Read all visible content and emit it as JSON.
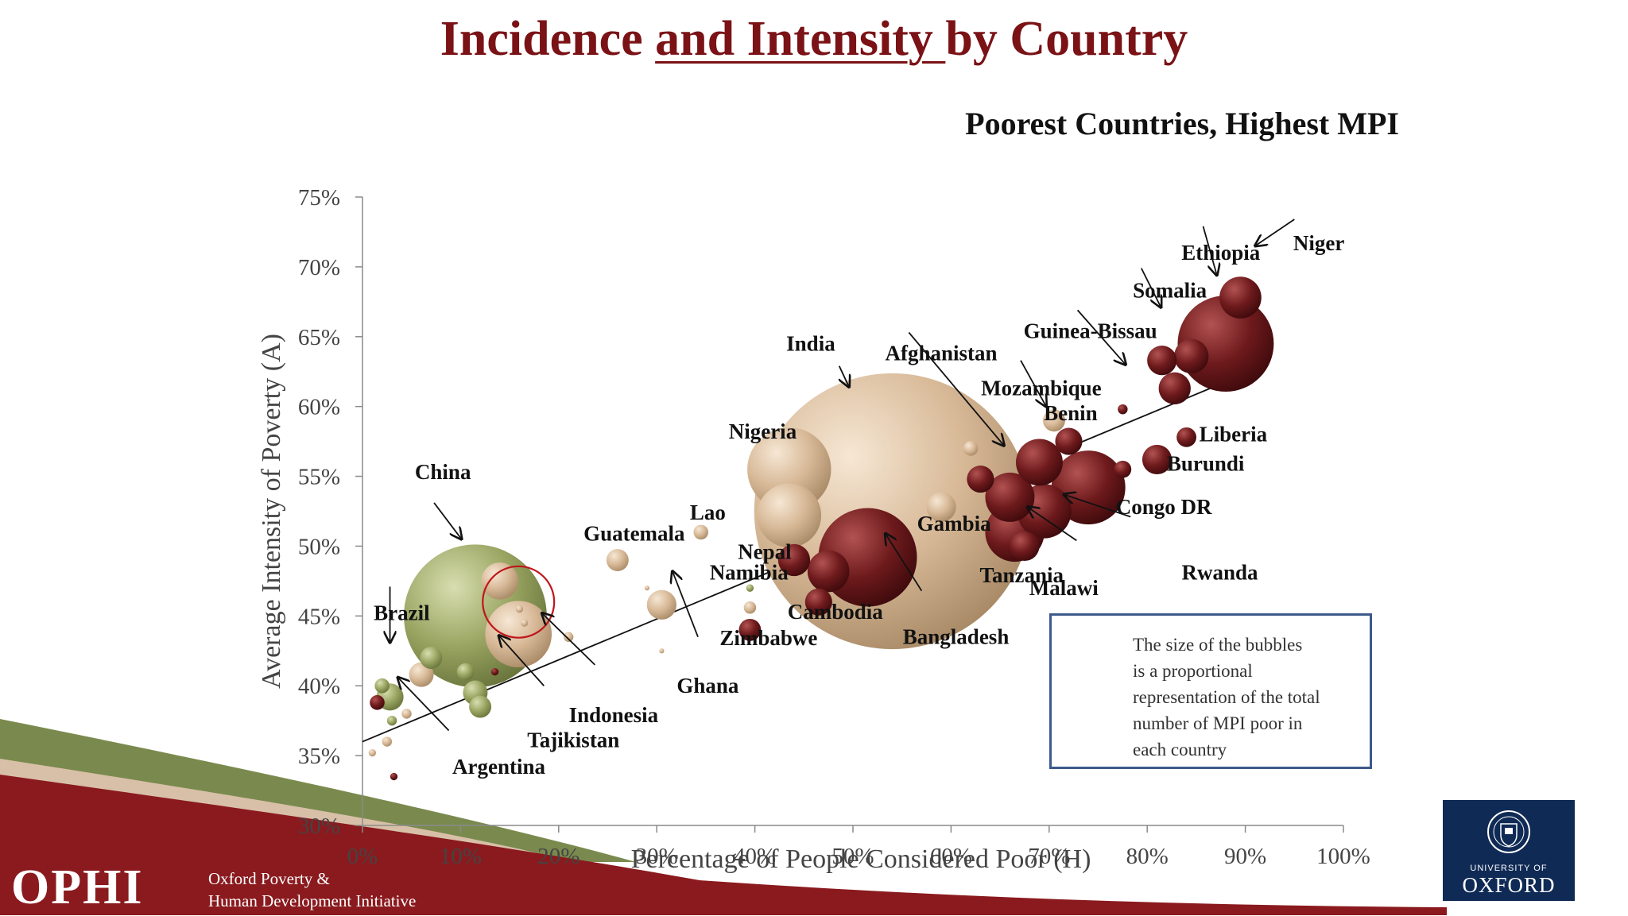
{
  "slide": {
    "title_part1": "Incidence ",
    "title_part2": "and Intensity ",
    "title_part3": "by Country"
  },
  "chart_data": {
    "type": "scatter",
    "subtitle": "Poorest Countries, Highest MPI",
    "xlabel": "Percentage of People Considered Poor (H)",
    "ylabel": "Average Intensity of Poverty (A)",
    "xlim": [
      0,
      100
    ],
    "ylim": [
      30,
      75
    ],
    "x_ticks": [
      {
        "value": 0,
        "label": "0%"
      },
      {
        "value": 10,
        "label": "10%"
      },
      {
        "value": 20,
        "label": "20%"
      },
      {
        "value": 30,
        "label": "30%"
      },
      {
        "value": 40,
        "label": "40%"
      },
      {
        "value": 50,
        "label": "50%"
      },
      {
        "value": 60,
        "label": "60%"
      },
      {
        "value": 70,
        "label": "70%"
      },
      {
        "value": 80,
        "label": "80%"
      },
      {
        "value": 90,
        "label": "90%"
      },
      {
        "value": 100,
        "label": "100%"
      }
    ],
    "y_ticks": [
      {
        "value": 30,
        "label": "30%"
      },
      {
        "value": 35,
        "label": "35%"
      },
      {
        "value": 40,
        "label": "40%"
      },
      {
        "value": 45,
        "label": "45%"
      },
      {
        "value": 50,
        "label": "50%"
      },
      {
        "value": 55,
        "label": "55%"
      },
      {
        "value": 60,
        "label": "60%"
      },
      {
        "value": 65,
        "label": "65%"
      },
      {
        "value": 70,
        "label": "70%"
      },
      {
        "value": 75,
        "label": "75%"
      }
    ],
    "grid": false,
    "trendline": {
      "x1": 0,
      "y1": 36,
      "x2": 89.5,
      "y2": 62.2
    },
    "colors": {
      "tan": "#d7b896",
      "maroon": "#6e1a1c",
      "olive": "#9aa562",
      "highlight": "#c0161c"
    },
    "points": [
      {
        "x": 54,
        "y": 52.5,
        "size": 112,
        "color": "tan"
      },
      {
        "x": 43.5,
        "y": 55.5,
        "size": 34,
        "color": "tan"
      },
      {
        "x": 43.5,
        "y": 52.2,
        "size": 26,
        "color": "tan"
      },
      {
        "x": 11.5,
        "y": 45,
        "size": 58,
        "color": "olive"
      },
      {
        "x": 15.9,
        "y": 43.7,
        "size": 27,
        "color": "tan"
      },
      {
        "x": 14,
        "y": 47.5,
        "size": 15,
        "color": "tan"
      },
      {
        "x": 51.5,
        "y": 49.2,
        "size": 40,
        "color": "maroon"
      },
      {
        "x": 74,
        "y": 54.2,
        "size": 30,
        "color": "maroon"
      },
      {
        "x": 69.5,
        "y": 52.5,
        "size": 22,
        "color": "maroon"
      },
      {
        "x": 66,
        "y": 53.5,
        "size": 20,
        "color": "maroon"
      },
      {
        "x": 66.5,
        "y": 51,
        "size": 24,
        "color": "maroon"
      },
      {
        "x": 67.5,
        "y": 50,
        "size": 12,
        "color": "maroon"
      },
      {
        "x": 69,
        "y": 56,
        "size": 19,
        "color": "maroon"
      },
      {
        "x": 88,
        "y": 64.5,
        "size": 39,
        "color": "maroon"
      },
      {
        "x": 89.5,
        "y": 67.8,
        "size": 17,
        "color": "maroon"
      },
      {
        "x": 82.8,
        "y": 61.3,
        "size": 13,
        "color": "maroon"
      },
      {
        "x": 81.5,
        "y": 63.3,
        "size": 12,
        "color": "maroon"
      },
      {
        "x": 84.5,
        "y": 63.6,
        "size": 14,
        "color": "maroon"
      },
      {
        "x": 81,
        "y": 56.2,
        "size": 12,
        "color": "maroon"
      },
      {
        "x": 84,
        "y": 57.8,
        "size": 8,
        "color": "maroon"
      },
      {
        "x": 77.5,
        "y": 55.5,
        "size": 7,
        "color": "maroon"
      },
      {
        "x": 72,
        "y": 57.5,
        "size": 11,
        "color": "maroon"
      },
      {
        "x": 63,
        "y": 54.8,
        "size": 11,
        "color": "maroon"
      },
      {
        "x": 47.5,
        "y": 48.2,
        "size": 17,
        "color": "maroon"
      },
      {
        "x": 44,
        "y": 49,
        "size": 13,
        "color": "maroon"
      },
      {
        "x": 46.5,
        "y": 46,
        "size": 11,
        "color": "maroon"
      },
      {
        "x": 39.5,
        "y": 44,
        "size": 9,
        "color": "maroon"
      },
      {
        "x": 70.5,
        "y": 59,
        "size": 9,
        "color": "tan"
      },
      {
        "x": 59,
        "y": 52.8,
        "size": 12,
        "color": "tan"
      },
      {
        "x": 62,
        "y": 57,
        "size": 6,
        "color": "tan"
      },
      {
        "x": 26,
        "y": 49,
        "size": 9,
        "color": "tan"
      },
      {
        "x": 34.5,
        "y": 51,
        "size": 6,
        "color": "tan"
      },
      {
        "x": 30.5,
        "y": 45.8,
        "size": 12,
        "color": "tan"
      },
      {
        "x": 39.5,
        "y": 45.6,
        "size": 5,
        "color": "tan"
      },
      {
        "x": 6,
        "y": 40.8,
        "size": 10,
        "color": "tan"
      },
      {
        "x": 21,
        "y": 43.5,
        "size": 4,
        "color": "tan"
      },
      {
        "x": 7,
        "y": 42,
        "size": 9,
        "color": "olive"
      },
      {
        "x": 10.5,
        "y": 41,
        "size": 7,
        "color": "olive"
      },
      {
        "x": 11.5,
        "y": 39.5,
        "size": 10,
        "color": "olive"
      },
      {
        "x": 12,
        "y": 38.5,
        "size": 9,
        "color": "olive"
      },
      {
        "x": 2.8,
        "y": 39.2,
        "size": 11,
        "color": "olive"
      },
      {
        "x": 2,
        "y": 40,
        "size": 6,
        "color": "olive"
      },
      {
        "x": 1.5,
        "y": 38.8,
        "size": 6,
        "color": "maroon"
      },
      {
        "x": 3,
        "y": 37.5,
        "size": 4,
        "color": "olive"
      },
      {
        "x": 4.5,
        "y": 38,
        "size": 4,
        "color": "tan"
      },
      {
        "x": 13.5,
        "y": 41,
        "size": 3,
        "color": "maroon"
      },
      {
        "x": 2.5,
        "y": 36,
        "size": 4,
        "color": "tan"
      },
      {
        "x": 3.2,
        "y": 33.5,
        "size": 3,
        "color": "maroon"
      },
      {
        "x": 1,
        "y": 35.2,
        "size": 3,
        "color": "tan"
      },
      {
        "x": 16,
        "y": 45.5,
        "size": 3,
        "color": "tan"
      },
      {
        "x": 16.5,
        "y": 44.5,
        "size": 3,
        "color": "tan"
      },
      {
        "x": 39.5,
        "y": 47,
        "size": 3,
        "color": "olive"
      },
      {
        "x": 30.5,
        "y": 42.5,
        "size": 2,
        "color": "tan"
      },
      {
        "x": 29,
        "y": 47,
        "size": 2,
        "color": "tan"
      },
      {
        "x": 77.5,
        "y": 59.8,
        "size": 4,
        "color": "maroon"
      }
    ],
    "highlight_circle": {
      "x": 15.9,
      "y": 46,
      "size": 29
    },
    "labels": [
      {
        "text": "Niger",
        "x": 97.5,
        "y": 71.2,
        "anchor": "middle"
      },
      {
        "text": "Ethiopia",
        "x": 87.5,
        "y": 70.5,
        "anchor": "middle"
      },
      {
        "text": "Somalia",
        "x": 82.3,
        "y": 67.8,
        "anchor": "middle"
      },
      {
        "text": "Guinea-Bissau",
        "x": 74.2,
        "y": 64.9,
        "anchor": "middle"
      },
      {
        "text": "India",
        "x": 45.7,
        "y": 64,
        "anchor": "middle"
      },
      {
        "text": "Afghanistan",
        "x": 59,
        "y": 63.3,
        "anchor": "middle"
      },
      {
        "text": "Mozambique",
        "x": 69.2,
        "y": 60.8,
        "anchor": "middle"
      },
      {
        "text": "Benin",
        "x": 72.2,
        "y": 59,
        "anchor": "middle"
      },
      {
        "text": "Liberia",
        "x": 85.3,
        "y": 57.5,
        "anchor": "start"
      },
      {
        "text": "Nigeria",
        "x": 40.8,
        "y": 57.7,
        "anchor": "middle"
      },
      {
        "text": "Burundi",
        "x": 82,
        "y": 55.4,
        "anchor": "start"
      },
      {
        "text": "China",
        "x": 8.2,
        "y": 54.8,
        "anchor": "middle"
      },
      {
        "text": "Congo DR",
        "x": 76.8,
        "y": 52.3,
        "anchor": "start"
      },
      {
        "text": "Lao",
        "x": 35.2,
        "y": 51.9,
        "anchor": "middle"
      },
      {
        "text": "Guatemala",
        "x": 27.7,
        "y": 50.4,
        "anchor": "middle"
      },
      {
        "text": "Gambia",
        "x": 60.3,
        "y": 51.1,
        "anchor": "middle"
      },
      {
        "text": "Nepal",
        "x": 41,
        "y": 49.1,
        "anchor": "middle"
      },
      {
        "text": "Namibia",
        "x": 39.4,
        "y": 47.6,
        "anchor": "middle"
      },
      {
        "text": "Rwanda",
        "x": 87.4,
        "y": 47.6,
        "anchor": "middle"
      },
      {
        "text": "Tanzania",
        "x": 67.2,
        "y": 47.4,
        "anchor": "middle"
      },
      {
        "text": "Malawi",
        "x": 71.5,
        "y": 46.5,
        "anchor": "middle"
      },
      {
        "text": "Brazil",
        "x": 4,
        "y": 44.7,
        "anchor": "middle"
      },
      {
        "text": "Cambodia",
        "x": 48.2,
        "y": 44.8,
        "anchor": "middle"
      },
      {
        "text": "Zimbabwe",
        "x": 41.4,
        "y": 42.9,
        "anchor": "middle"
      },
      {
        "text": "Bangladesh",
        "x": 60.5,
        "y": 43,
        "anchor": "middle"
      },
      {
        "text": "Ghana",
        "x": 35.2,
        "y": 39.5,
        "anchor": "middle"
      },
      {
        "text": "Indonesia",
        "x": 25.6,
        "y": 37.4,
        "anchor": "middle"
      },
      {
        "text": "Tajikistan",
        "x": 21.5,
        "y": 35.6,
        "anchor": "middle"
      },
      {
        "text": "Argentina",
        "x": 13.9,
        "y": 33.7,
        "anchor": "middle"
      }
    ],
    "arrows": [
      {
        "x1": 95,
        "y1": 73.4,
        "x2": 91,
        "y2": 71.5
      },
      {
        "x1": 85.7,
        "y1": 72.9,
        "x2": 87.1,
        "y2": 69.4
      },
      {
        "x1": 79.4,
        "y1": 69.9,
        "x2": 81.4,
        "y2": 67.1
      },
      {
        "x1": 72.9,
        "y1": 66.9,
        "x2": 77.8,
        "y2": 63
      },
      {
        "x1": 67.1,
        "y1": 63.3,
        "x2": 69.7,
        "y2": 60
      },
      {
        "x1": 55.7,
        "y1": 65.3,
        "x2": 65.4,
        "y2": 57.2
      },
      {
        "x1": 48.6,
        "y1": 62.9,
        "x2": 49.6,
        "y2": 61.4
      },
      {
        "x1": 7.3,
        "y1": 53.1,
        "x2": 10.1,
        "y2": 50.5
      },
      {
        "x1": 2.8,
        "y1": 47.1,
        "x2": 2.8,
        "y2": 43.1
      },
      {
        "x1": 34.2,
        "y1": 43.5,
        "x2": 31.6,
        "y2": 48.2
      },
      {
        "x1": 23.7,
        "y1": 41.5,
        "x2": 18.3,
        "y2": 45.2
      },
      {
        "x1": 18.5,
        "y1": 40,
        "x2": 13.9,
        "y2": 43.6
      },
      {
        "x1": 8.8,
        "y1": 36.8,
        "x2": 3.6,
        "y2": 40.6
      },
      {
        "x1": 57,
        "y1": 46.8,
        "x2": 53.3,
        "y2": 50.9
      },
      {
        "x1": 78.3,
        "y1": 52.1,
        "x2": 71.5,
        "y2": 53.7
      },
      {
        "x1": 72.8,
        "y1": 50.4,
        "x2": 67.8,
        "y2": 52.8
      }
    ]
  },
  "legend": {
    "lines": [
      "The size of the bubbles",
      "is a proportional",
      "representation of  the total",
      "number of MPI poor in",
      "each country"
    ]
  },
  "footer": {
    "ophi_logo": "OPHI",
    "ophi_line1": "Oxford Poverty &",
    "ophi_line2": "Human Development Initiative",
    "oxford_small": "UNIVERSITY OF",
    "oxford_big": "OXFORD"
  }
}
